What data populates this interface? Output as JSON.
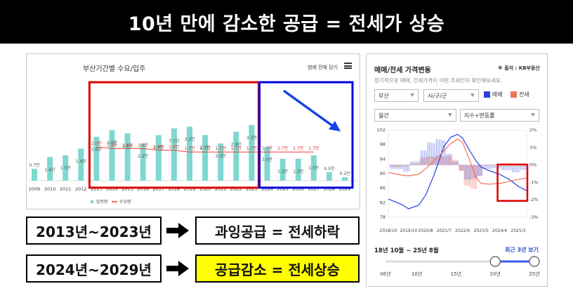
{
  "header": {
    "title": "10년 만에 감소한 공급 = 전세가 상승"
  },
  "left_panel": {
    "title": "부산기간별 수요/입주",
    "legend_all_label": "범례 전체 닫기",
    "legend": [
      {
        "label": "입주량",
        "color": "#7fd8cf"
      },
      {
        "label": "수요량",
        "color": "#e8413b"
      }
    ]
  },
  "statements": {
    "row1_left": "2013년~2023년",
    "row1_right": "과잉공급 = 전세하락",
    "row2_left": "2024년~2029년",
    "row2_right": "공급감소 = 전세상승"
  },
  "right_panel": {
    "title": "매매/전세 가격변동",
    "source": "※ 출처 : KB부동산",
    "subtitle": "장기적으로 매매, 전세가격이 어떤 추세인지 확인해보세요.",
    "select_region": "부산",
    "select_district": "시/구/군",
    "select_period": "월간",
    "select_index": "지수+변동률",
    "legend_trade": {
      "label": "매매",
      "color": "#2b3fe0"
    },
    "legend_jeonse": {
      "label": "전세",
      "color": "#f0735c"
    },
    "period_text": "18년 10월 ~ 25년 8월",
    "recent_link": "최근 3년 보기",
    "slider_ticks": [
      "06년",
      "10년",
      "15년",
      "20년",
      "25년"
    ],
    "slider_range": [
      20,
      25
    ]
  },
  "chart_data": [
    {
      "type": "bar",
      "title": "부산기간별 수요/입주",
      "categories": [
        "2009",
        "2010",
        "2011",
        "2012",
        "2013",
        "2014",
        "2015",
        "2016",
        "2017",
        "2018",
        "2019",
        "2020",
        "2021",
        "2022",
        "2023",
        "2024",
        "2025",
        "2026",
        "2027",
        "2028",
        "2029"
      ],
      "series": [
        {
          "name": "입주량",
          "type": "bar",
          "values": [
            0.7,
            1.4,
            1.5,
            1.9,
            2.6,
            3.0,
            2.8,
            2.2,
            2.7,
            3.1,
            3.2,
            2.7,
            2.2,
            2.9,
            3.3,
            2.0,
            1.3,
            1.3,
            1.5,
            0.5,
            0.2
          ],
          "labels": [
            "0.7만",
            "1.4만",
            "1.5만",
            "1.9만",
            "2.6만",
            "3.0만",
            "2.8만",
            "2.2만",
            "2.7만",
            "3.1만",
            "3.2만",
            "2.7만",
            "2.2만",
            "2.9만",
            "3.3만",
            "2.0만",
            "1.3만",
            "1.3만",
            "1.5만",
            "0.5만",
            "0.2만"
          ]
        },
        {
          "name": "수요량",
          "type": "line",
          "values": [
            null,
            null,
            null,
            null,
            2.0,
            1.9,
            1.9,
            1.9,
            1.8,
            1.8,
            1.7,
            1.7,
            1.7,
            1.7,
            1.7,
            1.7,
            1.7,
            1.7,
            1.7,
            null,
            null
          ],
          "labels": [
            "",
            "",
            "",
            "",
            "2.0만",
            "1.9만",
            "1.9만",
            "1.9만",
            "1.8만",
            "1.8만",
            "1.7만",
            "1.7만",
            "1.7만",
            "1.7만",
            "1.7만",
            "1.7만",
            "1.7만",
            "1.7만",
            "1.7만",
            "",
            ""
          ]
        }
      ],
      "annotations": [
        {
          "type": "box",
          "color": "#e00000",
          "from": "2013",
          "to": "2023"
        },
        {
          "type": "box",
          "color": "#0000e0",
          "from": "2024",
          "to": "2029"
        },
        {
          "type": "arrow",
          "color": "#1444e6",
          "direction": "down-right"
        }
      ]
    },
    {
      "type": "line",
      "title": "매매/전세 가격변동",
      "x_ticks": [
        "2018/10",
        "2019/10",
        "2020/8",
        "2021/7",
        "2022/6",
        "2023/5",
        "2024/4",
        "2025/3"
      ],
      "y_left_ticks": [
        78,
        82,
        86,
        90,
        94,
        98,
        102
      ],
      "y_right_ticks": [
        "2%",
        "1%",
        "0%",
        "-1%",
        "-2%",
        "-3%"
      ],
      "y_left_range": [
        78,
        102
      ],
      "y_right_range": [
        -3,
        2
      ],
      "series": [
        {
          "name": "매매",
          "color": "#2b3fe0",
          "x": [
            "2018/10",
            "2019/6",
            "2019/10",
            "2020/4",
            "2020/8",
            "2021/1",
            "2021/7",
            "2021/11",
            "2022/3",
            "2022/6",
            "2022/10",
            "2023/2",
            "2023/5",
            "2023/10",
            "2024/4",
            "2024/10",
            "2025/3",
            "2025/8"
          ],
          "values": [
            83.0,
            81.5,
            80.3,
            81.3,
            84.0,
            89.5,
            97.5,
            100.0,
            100.8,
            99.8,
            96.5,
            93.5,
            91.8,
            90.8,
            89.8,
            88.3,
            86.5,
            85.3
          ]
        },
        {
          "name": "전세",
          "color": "#f0735c",
          "x": [
            "2018/10",
            "2019/6",
            "2019/10",
            "2020/4",
            "2020/8",
            "2021/1",
            "2021/7",
            "2021/11",
            "2022/3",
            "2022/6",
            "2022/10",
            "2023/2",
            "2023/5",
            "2023/10",
            "2024/4",
            "2024/10",
            "2025/3",
            "2025/8"
          ],
          "values": [
            90.3,
            89.6,
            89.4,
            89.8,
            91.3,
            93.5,
            96.3,
            98.3,
            99.5,
            98.6,
            94.0,
            89.0,
            87.3,
            87.1,
            87.3,
            87.9,
            88.4,
            88.8
          ]
        }
      ],
      "annotations": [
        {
          "type": "box",
          "color": "#e00000",
          "from": "2024/4",
          "to": "2025/8"
        }
      ]
    }
  ]
}
